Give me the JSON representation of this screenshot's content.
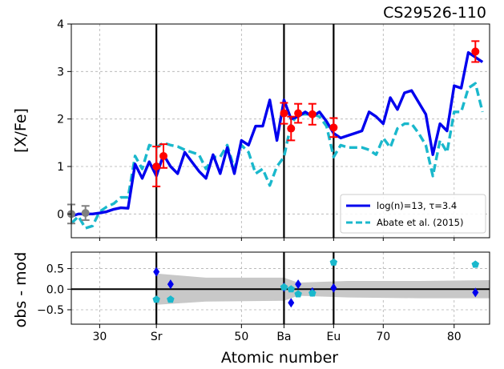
{
  "chart_data": [
    {
      "type": "line",
      "title": "CS29526-110",
      "xlabel": "",
      "ylabel": "[X/Fe]",
      "xlim": [
        26,
        85
      ],
      "ylim": [
        -0.5,
        4.0
      ],
      "yticks": [
        0,
        1,
        2,
        3,
        4
      ],
      "grid": true,
      "legend_position": "lower-right",
      "vlines": [
        38,
        56,
        63
      ],
      "series": [
        {
          "name": "log(n)=13, τ=3.4",
          "color": "#0000ee",
          "style": "solid",
          "x": [
            26,
            27,
            28,
            29,
            30,
            31,
            32,
            33,
            34,
            35,
            36,
            37,
            38,
            39,
            40,
            41,
            42,
            43,
            44,
            45,
            46,
            47,
            48,
            49,
            50,
            51,
            52,
            53,
            54,
            55,
            56,
            57,
            58,
            59,
            60,
            61,
            62,
            63,
            64,
            65,
            66,
            67,
            68,
            69,
            70,
            71,
            72,
            73,
            74,
            75,
            76,
            77,
            78,
            79,
            80,
            81,
            82,
            83,
            84
          ],
          "y": [
            -0.05,
            0.0,
            0.0,
            0.0,
            0.02,
            0.05,
            0.1,
            0.13,
            0.12,
            1.05,
            0.75,
            1.1,
            0.8,
            1.25,
            1.0,
            0.85,
            1.3,
            1.1,
            0.9,
            0.75,
            1.25,
            0.85,
            1.4,
            0.85,
            1.55,
            1.45,
            1.85,
            1.85,
            2.4,
            1.55,
            2.4,
            2.0,
            2.05,
            2.15,
            2.05,
            2.15,
            1.95,
            1.7,
            1.6,
            1.65,
            1.7,
            1.75,
            2.15,
            2.05,
            1.9,
            2.45,
            2.2,
            2.55,
            2.6,
            2.35,
            2.1,
            1.25,
            1.9,
            1.75,
            2.7,
            2.65,
            3.4,
            3.3,
            3.2
          ]
        },
        {
          "name": "Abate et al. (2015)",
          "color": "#1ab8cc",
          "style": "dashed",
          "x": [
            26,
            27,
            28,
            29,
            30,
            31,
            32,
            33,
            34,
            35,
            36,
            37,
            38,
            39,
            40,
            41,
            42,
            43,
            44,
            45,
            46,
            47,
            48,
            49,
            50,
            51,
            52,
            53,
            54,
            55,
            56,
            57,
            58,
            59,
            60,
            61,
            62,
            63,
            64,
            65,
            66,
            67,
            68,
            69,
            70,
            71,
            72,
            73,
            74,
            75,
            76,
            77,
            78,
            79,
            80,
            81,
            82,
            83,
            84
          ],
          "y": [
            -0.2,
            -0.05,
            -0.3,
            -0.25,
            0.05,
            0.15,
            0.22,
            0.35,
            0.35,
            1.22,
            0.95,
            1.45,
            1.4,
            1.5,
            1.45,
            1.42,
            1.35,
            1.3,
            1.25,
            0.95,
            1.2,
            1.2,
            1.45,
            0.95,
            1.45,
            1.3,
            0.85,
            0.95,
            0.6,
            1.0,
            1.2,
            1.9,
            2.1,
            2.1,
            2.1,
            2.05,
            1.85,
            1.2,
            1.45,
            1.4,
            1.4,
            1.4,
            1.35,
            1.25,
            1.6,
            1.4,
            1.8,
            1.9,
            1.9,
            1.7,
            1.45,
            0.8,
            1.55,
            1.3,
            2.15,
            2.15,
            2.65,
            2.75,
            2.15
          ]
        }
      ],
      "observations_red": {
        "x": [
          38,
          39,
          56,
          57,
          58,
          60,
          63,
          83
        ],
        "y": [
          1.0,
          1.22,
          2.12,
          1.8,
          2.12,
          2.1,
          1.82,
          3.42
        ],
        "err": [
          0.42,
          0.25,
          0.22,
          0.25,
          0.2,
          0.22,
          0.2,
          0.22
        ]
      },
      "observations_gray": {
        "x": [
          26,
          28
        ],
        "y": [
          0.0,
          0.02
        ],
        "err": [
          0.2,
          0.15
        ]
      }
    },
    {
      "type": "scatter",
      "ylabel": "obs - mod",
      "xlabel": "Atomic number",
      "xlim": [
        26,
        85
      ],
      "ylim": [
        -0.85,
        0.9
      ],
      "yticks": [
        0.5,
        0.0,
        -0.5
      ],
      "ytick_labels": [
        "0.5",
        "0.0",
        "−0.5"
      ],
      "xtick_values": [
        30,
        38,
        50,
        56,
        63,
        70,
        80
      ],
      "xtick_labels": [
        "30",
        "Sr",
        "50",
        "Ba",
        "Eu",
        "70",
        "80"
      ],
      "grid": true,
      "vlines": [
        38,
        56,
        63
      ],
      "hline": 0,
      "uncertainty_band": {
        "x": [
          38,
          45,
          56,
          58,
          65,
          75,
          85
        ],
        "upper": [
          0.38,
          0.28,
          0.28,
          0.16,
          0.2,
          0.2,
          0.22
        ],
        "lower": [
          -0.38,
          -0.3,
          -0.28,
          -0.16,
          -0.2,
          -0.22,
          -0.22
        ]
      },
      "series": [
        {
          "name": "",
          "color": "#0000ee",
          "marker": "diamond",
          "x": [
            38,
            40,
            56,
            57,
            58,
            60,
            63,
            83
          ],
          "y": [
            0.42,
            0.12,
            0.05,
            -0.33,
            0.12,
            -0.07,
            0.03,
            -0.08
          ]
        },
        {
          "name": "",
          "color": "#1ab8cc",
          "marker": "pentagon",
          "x": [
            38,
            40,
            56,
            57,
            58,
            60,
            63,
            83
          ],
          "y": [
            -0.25,
            -0.25,
            0.05,
            0.0,
            -0.12,
            -0.1,
            0.65,
            0.6
          ]
        }
      ]
    }
  ]
}
